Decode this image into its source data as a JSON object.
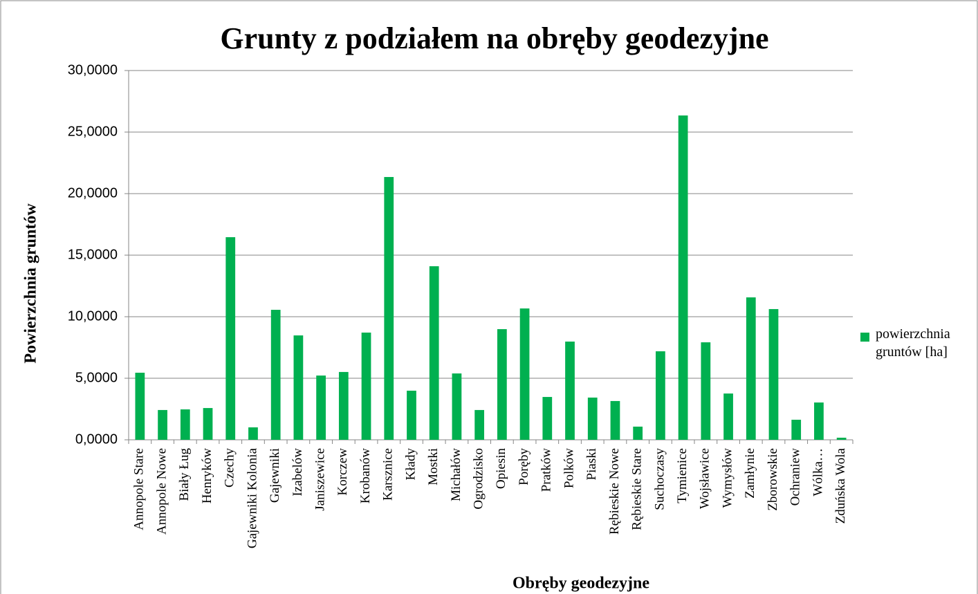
{
  "chart_data": {
    "type": "bar",
    "title": "Grunty z podziałem na obręby geodezyjne",
    "x_label": "Obręby geodezyjne",
    "y_label": "Powierzchnia gruntów",
    "categories": [
      "Annopole Stare",
      "Annopole Nowe",
      "Biały Ług",
      "Henryków",
      "Czechy",
      "Gajewniki Kolonia",
      "Gajewniki",
      "Izabelów",
      "Janiszewice",
      "Korczew",
      "Krobanów",
      "Karsznice",
      "Kłady",
      "Mostki",
      "Michałów",
      "Ogrodzisko",
      "Opiesin",
      "Poręby",
      "Pratków",
      "Polków",
      "Piaski",
      "Rębieskie Nowe",
      "Rębieskie Stare",
      "Suchoczasy",
      "Tymienice",
      "Wojsławice",
      "Wymysłów",
      "Zamłynie",
      "Zborowskie",
      "Ochraniew",
      "Wólka…",
      "Zduńska Wola"
    ],
    "series": [
      {
        "name": "powierzchnia gruntów [ha]",
        "color": "#00b050",
        "values": [
          5.45,
          2.42,
          2.47,
          2.58,
          16.46,
          1.01,
          10.56,
          8.48,
          5.22,
          5.51,
          8.71,
          21.35,
          3.99,
          14.1,
          5.39,
          2.42,
          8.99,
          10.67,
          3.48,
          7.98,
          3.43,
          3.15,
          1.07,
          7.19,
          26.35,
          7.92,
          3.76,
          11.57,
          10.62,
          1.63,
          3.03,
          0.17
        ]
      }
    ],
    "ylim": [
      0,
      30
    ],
    "yticks": [
      {
        "value": 0,
        "label": "0,0000"
      },
      {
        "value": 5,
        "label": "5,0000"
      },
      {
        "value": 10,
        "label": "10,0000"
      },
      {
        "value": 15,
        "label": "15,0000"
      },
      {
        "value": 20,
        "label": "20,0000"
      },
      {
        "value": 25,
        "label": "25,0000"
      },
      {
        "value": 30,
        "label": "30,0000"
      }
    ],
    "grid": true,
    "legend": "right"
  }
}
